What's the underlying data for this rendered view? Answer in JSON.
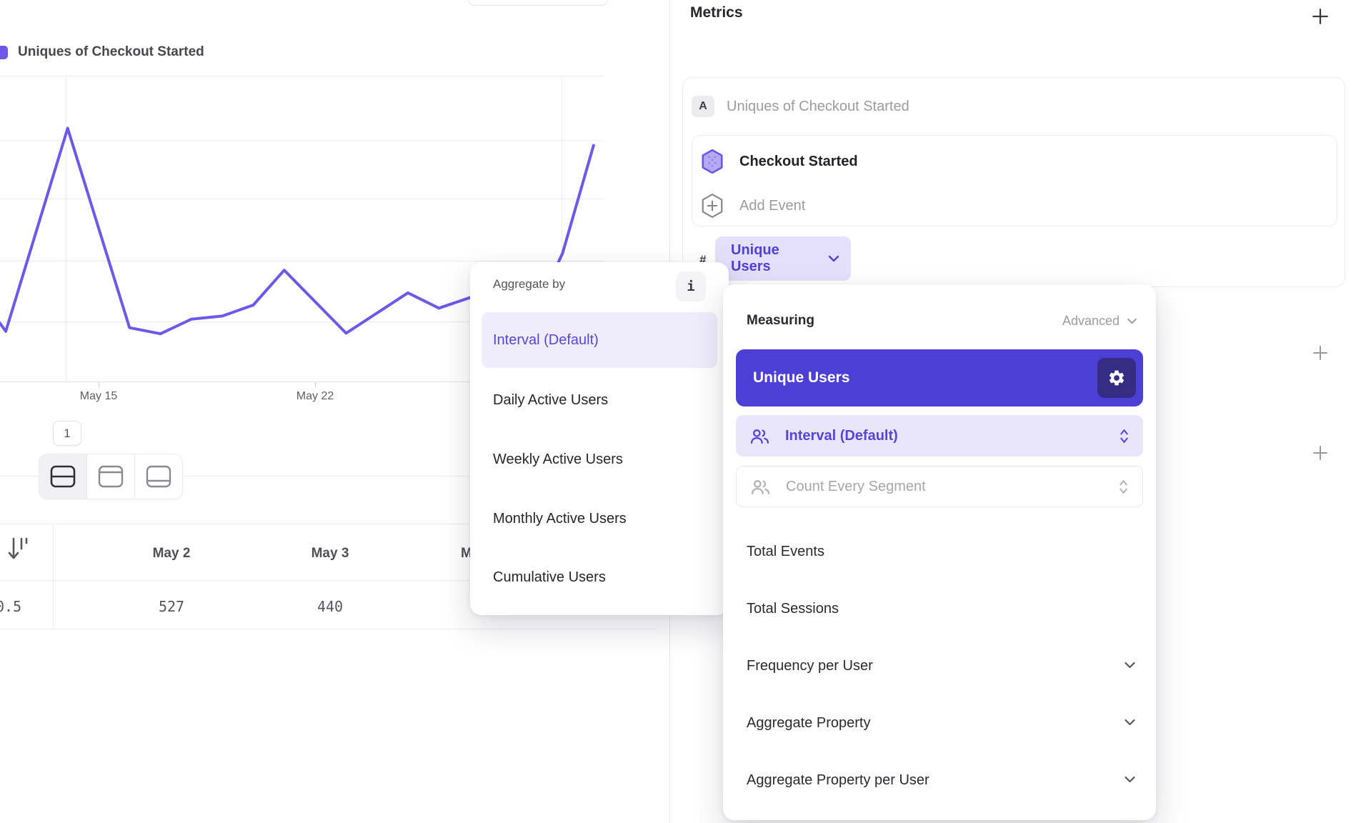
{
  "colors": {
    "accent_purple": "#6C59E8",
    "indigo_button": "#4C3FD5",
    "gear_button_bg": "#352C85",
    "purple_text": "#5746D6",
    "pill_bg": "#E4DFFA",
    "lavender_row_bg": "#E9E5FA",
    "selected_item_bg": "#EFECFB"
  },
  "chart": {
    "legend_label": "Uniques of Checkout Started"
  },
  "chart_data": {
    "type": "line",
    "title": "Uniques of Checkout Started",
    "series": [
      {
        "name": "Uniques of Checkout Started",
        "points": [
          {
            "day": 11.8,
            "value": 96
          },
          {
            "day": 12,
            "value": 82
          },
          {
            "day": 14,
            "value": 414
          },
          {
            "day": 16,
            "value": 88
          },
          {
            "day": 17,
            "value": 78
          },
          {
            "day": 18,
            "value": 102
          },
          {
            "day": 19,
            "value": 107
          },
          {
            "day": 20,
            "value": 125
          },
          {
            "day": 21,
            "value": 182
          },
          {
            "day": 23,
            "value": 79
          },
          {
            "day": 25,
            "value": 145
          },
          {
            "day": 26,
            "value": 120
          },
          {
            "day": 27,
            "value": 137
          },
          {
            "day": 28,
            "value": 122
          },
          {
            "day": 29,
            "value": 100
          },
          {
            "day": 30,
            "value": 210
          },
          {
            "day": 31,
            "value": 386
          }
        ]
      }
    ],
    "x_tick_labels": [
      "May 15",
      "May 22"
    ],
    "x_tick_days": [
      15,
      22
    ],
    "ylim": [
      0,
      500
    ],
    "y_gridline_step": 100,
    "grid": true,
    "legend_position": "top-left"
  },
  "pagination": {
    "page": "1"
  },
  "view_toggle": {
    "icons": [
      "split-rows-icon",
      "panel-top-icon",
      "panel-bottom-icon"
    ],
    "active_index": 0
  },
  "table": {
    "sort_icon": "sort-descending-icon",
    "columns": [
      "May 2",
      "May 3",
      "M"
    ],
    "row": {
      "label": "0.5",
      "values": [
        "527",
        "440"
      ]
    }
  },
  "aggregate_menu": {
    "title": "Aggregate by",
    "info_icon": "info-icon",
    "items": [
      {
        "label": "Interval (Default)",
        "selected": true
      },
      {
        "label": "Daily Active Users",
        "selected": false
      },
      {
        "label": "Weekly Active Users",
        "selected": false
      },
      {
        "label": "Monthly Active Users",
        "selected": false
      },
      {
        "label": "Cumulative Users",
        "selected": false
      }
    ]
  },
  "metrics": {
    "title": "Metrics",
    "card_badge": "A",
    "card_title": "Uniques of Checkout Started",
    "event_name": "Checkout Started",
    "add_event_label": "Add Event",
    "pill_prefix": "#",
    "pill_label": "Unique Users"
  },
  "measuring_menu": {
    "title": "Measuring",
    "mode_label": "Advanced",
    "selected_label": "Unique Users",
    "interval_label": "Interval (Default)",
    "segment_label": "Count Every Segment",
    "items": [
      "Total Events",
      "Total Sessions",
      "Frequency per User",
      "Aggregate Property",
      "Aggregate Property per User"
    ],
    "expandable_items": [
      "Frequency per User",
      "Aggregate Property",
      "Aggregate Property per User"
    ]
  }
}
